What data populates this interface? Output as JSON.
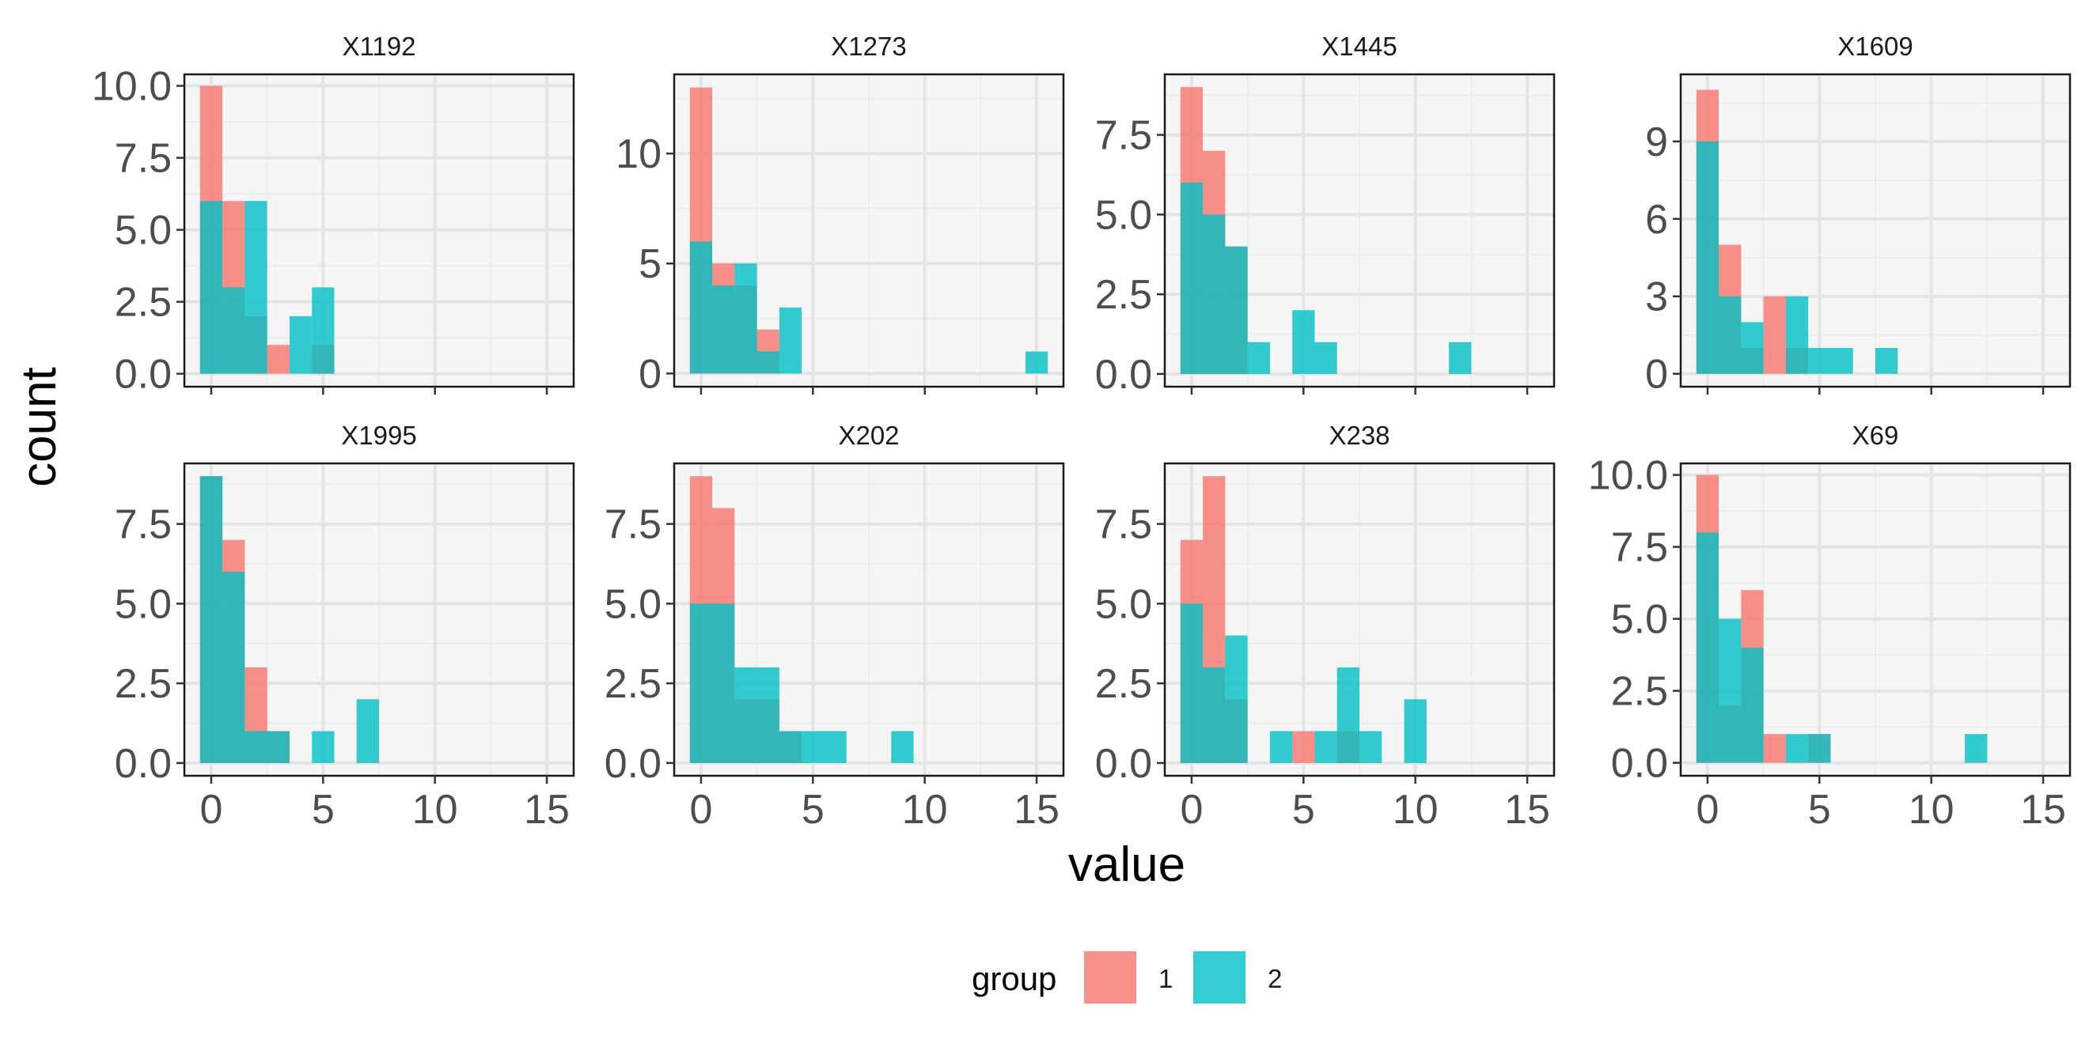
{
  "chart_data": {
    "type": "histogram",
    "facet_layout": "2 rows x 4 columns",
    "xlabel": "value",
    "ylabel": "count",
    "x_ticks": [
      0,
      5,
      10,
      15
    ],
    "xlim": [
      -1.2,
      16.2
    ],
    "bin_width": 1,
    "panel_background": "#f5f5f5",
    "grid": true,
    "legend": {
      "title": "group",
      "position": "bottom",
      "entries": [
        {
          "label": "1",
          "color": "#F8766D"
        },
        {
          "label": "2",
          "color": "#00BFC4"
        }
      ]
    },
    "overlap_color": "#2fb4b0",
    "panels": [
      {
        "title": "X1192",
        "ylim": [
          -0.45,
          10.4
        ],
        "y_ticks": [
          "0.0",
          "2.5",
          "5.0",
          "7.5",
          "10.0"
        ],
        "y_tick_values": [
          0,
          2.5,
          5,
          7.5,
          10
        ],
        "series": [
          {
            "name": "1",
            "bins": [
              [
                0,
                10
              ],
              [
                1,
                6
              ],
              [
                2,
                2
              ],
              [
                3,
                1
              ],
              [
                5,
                1
              ]
            ]
          },
          {
            "name": "2",
            "bins": [
              [
                0,
                6
              ],
              [
                1,
                3
              ],
              [
                2,
                6
              ],
              [
                4,
                2
              ],
              [
                5,
                3
              ]
            ]
          }
        ]
      },
      {
        "title": "X1273",
        "ylim": [
          -0.6,
          13.6
        ],
        "y_ticks": [
          "0",
          "5",
          "10"
        ],
        "y_tick_values": [
          0,
          5,
          10
        ],
        "series": [
          {
            "name": "1",
            "bins": [
              [
                0,
                13
              ],
              [
                1,
                5
              ],
              [
                2,
                4
              ],
              [
                3,
                2
              ]
            ]
          },
          {
            "name": "2",
            "bins": [
              [
                0,
                6
              ],
              [
                1,
                4
              ],
              [
                2,
                5
              ],
              [
                3,
                1
              ],
              [
                4,
                3
              ],
              [
                15,
                1
              ]
            ]
          }
        ]
      },
      {
        "title": "X1445",
        "ylim": [
          -0.4,
          9.4
        ],
        "y_ticks": [
          "0.0",
          "2.5",
          "5.0",
          "7.5"
        ],
        "y_tick_values": [
          0,
          2.5,
          5,
          7.5
        ],
        "series": [
          {
            "name": "1",
            "bins": [
              [
                0,
                9
              ],
              [
                1,
                7
              ],
              [
                2,
                4
              ]
            ]
          },
          {
            "name": "2",
            "bins": [
              [
                0,
                6
              ],
              [
                1,
                5
              ],
              [
                2,
                4
              ],
              [
                3,
                1
              ],
              [
                5,
                2
              ],
              [
                6,
                1
              ],
              [
                12,
                1
              ]
            ]
          }
        ]
      },
      {
        "title": "X1609",
        "ylim": [
          -0.5,
          11.6
        ],
        "y_ticks": [
          "0",
          "3",
          "6",
          "9"
        ],
        "y_tick_values": [
          0,
          3,
          6,
          9
        ],
        "series": [
          {
            "name": "1",
            "bins": [
              [
                0,
                11
              ],
              [
                1,
                5
              ],
              [
                2,
                1
              ],
              [
                3,
                3
              ],
              [
                4,
                1
              ]
            ]
          },
          {
            "name": "2",
            "bins": [
              [
                0,
                9
              ],
              [
                1,
                3
              ],
              [
                2,
                2
              ],
              [
                4,
                3
              ],
              [
                5,
                1
              ],
              [
                6,
                1
              ],
              [
                8,
                1
              ]
            ]
          }
        ]
      },
      {
        "title": "X1995",
        "ylim": [
          -0.4,
          9.4
        ],
        "y_ticks": [
          "0.0",
          "2.5",
          "5.0",
          "7.5"
        ],
        "y_tick_values": [
          0,
          2.5,
          5,
          7.5
        ],
        "series": [
          {
            "name": "1",
            "bins": [
              [
                0,
                9
              ],
              [
                1,
                7
              ],
              [
                2,
                3
              ],
              [
                3,
                1
              ]
            ]
          },
          {
            "name": "2",
            "bins": [
              [
                0,
                9
              ],
              [
                1,
                6
              ],
              [
                2,
                1
              ],
              [
                3,
                1
              ],
              [
                5,
                1
              ],
              [
                7,
                2
              ]
            ]
          }
        ]
      },
      {
        "title": "X202",
        "ylim": [
          -0.4,
          9.4
        ],
        "y_ticks": [
          "0.0",
          "2.5",
          "5.0",
          "7.5"
        ],
        "y_tick_values": [
          0,
          2.5,
          5,
          7.5
        ],
        "series": [
          {
            "name": "1",
            "bins": [
              [
                0,
                9
              ],
              [
                1,
                8
              ],
              [
                2,
                2
              ],
              [
                3,
                2
              ],
              [
                4,
                1
              ]
            ]
          },
          {
            "name": "2",
            "bins": [
              [
                0,
                5
              ],
              [
                1,
                5
              ],
              [
                2,
                3
              ],
              [
                3,
                3
              ],
              [
                4,
                1
              ],
              [
                5,
                1
              ],
              [
                6,
                1
              ],
              [
                9,
                1
              ]
            ]
          }
        ]
      },
      {
        "title": "X238",
        "ylim": [
          -0.4,
          9.4
        ],
        "y_ticks": [
          "0.0",
          "2.5",
          "5.0",
          "7.5"
        ],
        "y_tick_values": [
          0,
          2.5,
          5,
          7.5
        ],
        "series": [
          {
            "name": "1",
            "bins": [
              [
                0,
                7
              ],
              [
                1,
                9
              ],
              [
                2,
                2
              ],
              [
                5,
                1
              ],
              [
                7,
                1
              ]
            ]
          },
          {
            "name": "2",
            "bins": [
              [
                0,
                5
              ],
              [
                1,
                3
              ],
              [
                2,
                4
              ],
              [
                4,
                1
              ],
              [
                6,
                1
              ],
              [
                7,
                3
              ],
              [
                8,
                1
              ],
              [
                10,
                2
              ]
            ]
          }
        ]
      },
      {
        "title": "X69",
        "ylim": [
          -0.45,
          10.4
        ],
        "y_ticks": [
          "0.0",
          "2.5",
          "5.0",
          "7.5",
          "10.0"
        ],
        "y_tick_values": [
          0,
          2.5,
          5,
          7.5,
          10
        ],
        "series": [
          {
            "name": "1",
            "bins": [
              [
                0,
                10
              ],
              [
                1,
                2
              ],
              [
                2,
                6
              ],
              [
                3,
                1
              ],
              [
                5,
                1
              ]
            ]
          },
          {
            "name": "2",
            "bins": [
              [
                0,
                8
              ],
              [
                1,
                5
              ],
              [
                2,
                4
              ],
              [
                4,
                1
              ],
              [
                5,
                1
              ],
              [
                12,
                1
              ]
            ]
          }
        ]
      }
    ]
  }
}
